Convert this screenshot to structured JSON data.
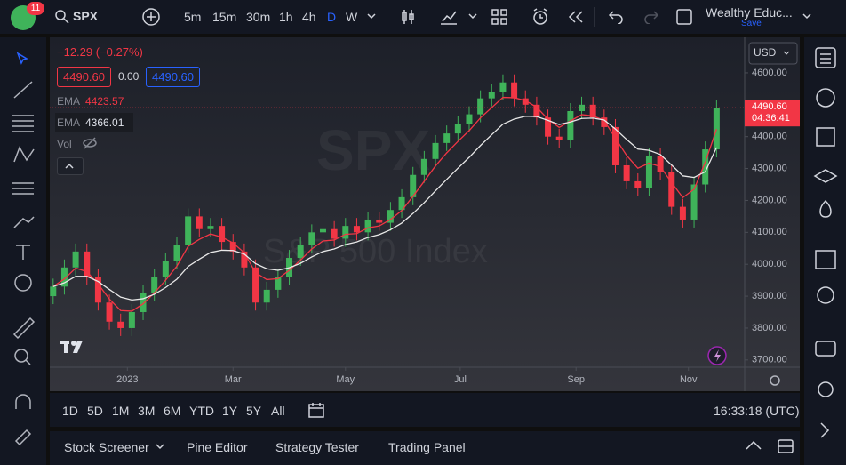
{
  "top_bar": {
    "badge": "11",
    "symbol": "SPX",
    "intervals": [
      "5m",
      "15m",
      "30m",
      "1h",
      "4h",
      "D",
      "W"
    ],
    "layout_name": "Wealthy Educ...",
    "save": "Save"
  },
  "legend": {
    "change": "−12.29 (−0.27%)",
    "bid": "4490.60",
    "spread": "0.00",
    "ask": "4490.60",
    "vol": "Vol"
  },
  "range_bar": {
    "ranges": [
      "1D",
      "5D",
      "1M",
      "3M",
      "6M",
      "YTD",
      "1Y",
      "5Y",
      "All"
    ],
    "clock": "16:33:18 (UTC)"
  },
  "bottom_panel": {
    "tabs": [
      "Stock Screener",
      "Pine Editor",
      "Strategy Tester",
      "Trading Panel"
    ]
  },
  "chart_data": {
    "type": "candlestick",
    "title": "SPX",
    "subtitle": "S&P 500 Index",
    "currency": "USD",
    "countdown": "04:36:41",
    "last_price": {
      "value": 4490.6,
      "label": "4490.60"
    },
    "up_color": "#3fb35a",
    "down_color": "#f23645",
    "xlim": [
      -0.3,
      61.5
    ],
    "xticks": [
      {
        "value": 6.6,
        "label": "2023"
      },
      {
        "value": 16,
        "label": "Mar"
      },
      {
        "value": 26,
        "label": "May"
      },
      {
        "value": 36.2,
        "label": "Jul"
      },
      {
        "value": 46.5,
        "label": "Sep"
      },
      {
        "value": 56.5,
        "label": "Nov"
      }
    ],
    "ylim": [
      3680,
      4703
    ],
    "yticks": [
      {
        "value": 3700,
        "label": "3700.00"
      },
      {
        "value": 3800,
        "label": "3800.00"
      },
      {
        "value": 3900,
        "label": "3900.00"
      },
      {
        "value": 4000,
        "label": "4000.00"
      },
      {
        "value": 4100,
        "label": "4100.00"
      },
      {
        "value": 4200,
        "label": "4200.00"
      },
      {
        "value": 4300,
        "label": "4300.00"
      },
      {
        "value": 4400,
        "label": "4400.00"
      },
      {
        "value": 4500,
        "label": "4500.00"
      },
      {
        "value": 4600,
        "label": "4600.00"
      }
    ],
    "open": [
      3900,
      3930,
      3990,
      4040,
      3960,
      3880,
      3820,
      3800,
      3850,
      3910,
      3960,
      4010,
      4060,
      4150,
      4110,
      4120,
      4070,
      4040,
      3990,
      3880,
      3920,
      3960,
      4020,
      4060,
      4100,
      4110,
      4080,
      4120,
      4100,
      4140,
      4130,
      4170,
      4210,
      4280,
      4330,
      4380,
      4410,
      4440,
      4470,
      4520,
      4540,
      4570,
      4520,
      4500,
      4460,
      4400,
      4390,
      4480,
      4500,
      4460,
      4430,
      4310,
      4260,
      4240,
      4340,
      4290,
      4180,
      4140,
      4250,
      4360
    ],
    "high": [
      3955,
      4015,
      4065,
      4065,
      3985,
      3905,
      3845,
      3875,
      3935,
      3985,
      4035,
      4085,
      4175,
      4175,
      4145,
      4145,
      4095,
      4065,
      4015,
      3945,
      3985,
      4045,
      4085,
      4125,
      4135,
      4135,
      4145,
      4145,
      4165,
      4165,
      4195,
      4235,
      4305,
      4355,
      4405,
      4435,
      4465,
      4495,
      4545,
      4565,
      4595,
      4595,
      4545,
      4525,
      4485,
      4425,
      4505,
      4525,
      4525,
      4485,
      4455,
      4335,
      4285,
      4365,
      4365,
      4315,
      4205,
      4275,
      4385,
      4515
    ],
    "low": [
      3875,
      3905,
      3965,
      3935,
      3855,
      3795,
      3775,
      3775,
      3825,
      3885,
      3935,
      3985,
      4035,
      4085,
      4085,
      4045,
      4015,
      3965,
      3855,
      3855,
      3895,
      3935,
      3995,
      4035,
      4075,
      4055,
      4055,
      4075,
      4075,
      4105,
      4105,
      4145,
      4185,
      4255,
      4305,
      4355,
      4385,
      4415,
      4445,
      4495,
      4515,
      4495,
      4475,
      4435,
      4375,
      4365,
      4365,
      4455,
      4435,
      4405,
      4285,
      4235,
      4215,
      4215,
      4265,
      4155,
      4115,
      4115,
      4225,
      4335
    ],
    "close": [
      3930,
      3990,
      4040,
      3960,
      3880,
      3820,
      3800,
      3850,
      3910,
      3960,
      4010,
      4060,
      4150,
      4110,
      4120,
      4070,
      4040,
      3990,
      3880,
      3920,
      3960,
      4020,
      4060,
      4100,
      4110,
      4080,
      4120,
      4100,
      4140,
      4130,
      4170,
      4210,
      4280,
      4330,
      4380,
      4410,
      4440,
      4470,
      4520,
      4540,
      4570,
      4520,
      4500,
      4460,
      4400,
      4390,
      4480,
      4500,
      4460,
      4430,
      4310,
      4260,
      4240,
      4340,
      4290,
      4180,
      4140,
      4250,
      4360,
      4490.6
    ],
    "series": [
      {
        "name": "EMA",
        "color": "#f23645",
        "values": [
          3930,
          3954,
          3988,
          3977,
          3938,
          3891,
          3855,
          3853,
          3876,
          3910,
          3950,
          3994,
          4056,
          4078,
          4095,
          4085,
          4067,
          4036,
          3974,
          3952,
          3955,
          3981,
          4013,
          4048,
          4073,
          4076,
          4094,
          4096,
          4114,
          4120,
          4140,
          4168,
          4213,
          4260,
          4308,
          4349,
          4385,
          4419,
          4459,
          4491,
          4523,
          4522,
          4513,
          4492,
          4455,
          4429,
          4449,
          4469,
          4465,
          4451,
          4395,
          4341,
          4301,
          4317,
          4306,
          4256,
          4209,
          4235,
          4320,
          4423.57
        ]
      },
      {
        "name": "EMA",
        "color": "#e8e8e8",
        "values": [
          3930,
          3942,
          3962,
          3962,
          3946,
          3921,
          3897,
          3888,
          3892,
          3906,
          3927,
          3953,
          3993,
          4016,
          4037,
          4044,
          4043,
          4032,
          4002,
          3986,
          3981,
          3989,
          4003,
          4023,
          4040,
          4048,
          4062,
          4070,
          4084,
          4093,
          4108,
          4129,
          4159,
          4193,
          4230,
          4266,
          4301,
          4335,
          4372,
          4406,
          4439,
          4455,
          4464,
          4463,
          4451,
          4438,
          4446,
          4457,
          4458,
          4452,
          4424,
          4391,
          4361,
          4357,
          4344,
          4311,
          4277,
          4272,
          4290,
          4366.01
        ]
      }
    ]
  }
}
